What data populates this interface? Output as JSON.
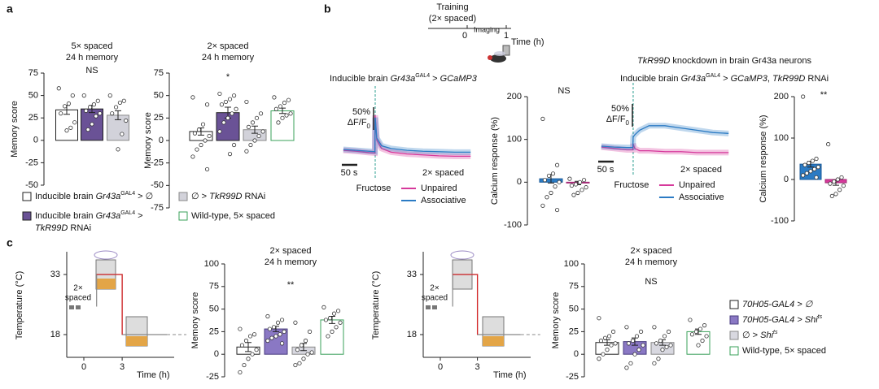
{
  "panel_labels": [
    "a",
    "b",
    "c"
  ],
  "timeline": {
    "lines": [
      "Training",
      "(2× spaced)"
    ],
    "ticks": [
      "0",
      "1"
    ],
    "label": "Imaging",
    "axis_label": "Time (h)"
  },
  "chart_data": [
    {
      "type": "bar",
      "title": [
        "5× spaced",
        "24 h memory"
      ],
      "annotation": "NS",
      "y_label": "Memory score",
      "ylim": [
        -50,
        75
      ],
      "yticks": [
        -50,
        -25,
        0,
        25,
        50,
        75
      ],
      "values": [
        34,
        35,
        28
      ],
      "errors": [
        5,
        4,
        5
      ],
      "points": [
        [
          58,
          50,
          41,
          38,
          30,
          20,
          14,
          11
        ],
        [
          50,
          44,
          40,
          37,
          33,
          30,
          27,
          18,
          12
        ],
        [
          50,
          44,
          42,
          37,
          30,
          22,
          7,
          -10
        ]
      ],
      "colors": [
        "#ffffff",
        "#6a5296",
        "#d2d2da"
      ],
      "edge_colors": [
        "#222222",
        "#222222",
        "#888888"
      ]
    },
    {
      "type": "bar",
      "title": [
        "2× spaced",
        "24 h memory"
      ],
      "annotation": "*",
      "y_label": "Memory score",
      "ylim": [
        -75,
        75
      ],
      "yticks": [
        -75,
        -50,
        -25,
        0,
        25,
        50,
        75
      ],
      "values": [
        10,
        31,
        12,
        33
      ],
      "errors": [
        4,
        6,
        4,
        3
      ],
      "points": [
        [
          48,
          40,
          18,
          12,
          8,
          5,
          0,
          -5,
          -10,
          -18,
          -32
        ],
        [
          52,
          50,
          46,
          43,
          40,
          35,
          30,
          25,
          20,
          10,
          -5,
          -15
        ],
        [
          43,
          30,
          25,
          20,
          15,
          10,
          5,
          0,
          -5,
          -12
        ],
        [
          48,
          45,
          42,
          38,
          35,
          30,
          28,
          25,
          20
        ]
      ],
      "colors": [
        "#ffffff",
        "#6a5296",
        "#d2d2da",
        "#ffffff"
      ],
      "edge_colors": [
        "#222222",
        "#222222",
        "#888888",
        "#3aa05a"
      ]
    },
    {
      "type": "line",
      "title": [
        {
          "t": "Inducible brain "
        },
        {
          "t": "Gr43a",
          "i": true
        },
        {
          "t": "GAL4",
          "sup": true
        },
        {
          "t": " > "
        },
        {
          "t": "GCaMP3",
          "i": true
        }
      ],
      "x": [
        -100,
        -60,
        -20,
        -1,
        0,
        5,
        20,
        50,
        100,
        150,
        200,
        250,
        300
      ],
      "series": [
        {
          "name": "Unpaired",
          "color": "#d6399b",
          "values": [
            -2,
            -4,
            -7,
            -8,
            75,
            20,
            2,
            -6,
            -10,
            -12,
            -14,
            -15,
            -15
          ]
        },
        {
          "name": "Associative",
          "color": "#2b7bc4",
          "values": [
            0,
            -2,
            -4,
            -5,
            70,
            25,
            8,
            2,
            -2,
            -4,
            -5,
            -6,
            -6
          ]
        }
      ],
      "scale_labels": [
        [
          {
            "t": "50%"
          }
        ],
        [
          {
            "t": "ΔF/F"
          },
          {
            "t": "0",
            "sub": true
          }
        ]
      ],
      "time_scale": "50 s",
      "stimulus": "Fructose",
      "condition": "2× spaced"
    },
    {
      "type": "bar",
      "annotation": "NS",
      "y_label": "Calcium response (%)",
      "ylim": [
        -100,
        200
      ],
      "yticks": [
        -100,
        0,
        100,
        200
      ],
      "values": [
        8,
        -2
      ],
      "errors": [
        10,
        4
      ],
      "points": [
        [
          148,
          40,
          20,
          15,
          5,
          0,
          -10,
          -25,
          -35,
          -55,
          -65
        ],
        [
          8,
          5,
          0,
          -5,
          -8,
          -12,
          -18,
          -25,
          -30
        ]
      ],
      "colors": [
        "#2b7bc4",
        "#d6399b"
      ],
      "edge_colors": [
        "#1a5a99",
        "#a32a76"
      ]
    },
    {
      "type": "line",
      "heading": [
        {
          "t": "TkR99D",
          "i": true
        },
        {
          "t": " knockdown in brain Gr43a neurons"
        }
      ],
      "title": [
        {
          "t": "Inducible brain "
        },
        {
          "t": "Gr43a",
          "i": true
        },
        {
          "t": "GAL4",
          "sup": true
        },
        {
          "t": " > "
        },
        {
          "t": "GCaMP3",
          "i": true
        },
        {
          "t": ", "
        },
        {
          "t": "TkR99D",
          "i": true
        },
        {
          "t": " RNAi"
        }
      ],
      "x": [
        -100,
        -60,
        -20,
        -1,
        0,
        5,
        20,
        50,
        100,
        150,
        200,
        250,
        300
      ],
      "series": [
        {
          "name": "Unpaired",
          "color": "#d6399b",
          "values": [
            -2,
            -5,
            -8,
            -8,
            5,
            -5,
            -10,
            -10,
            -12,
            -12,
            -14,
            -14,
            -14
          ]
        },
        {
          "name": "Associative",
          "color": "#2b7bc4",
          "values": [
            0,
            -2,
            -3,
            -3,
            20,
            25,
            35,
            45,
            45,
            40,
            35,
            30,
            28
          ]
        }
      ],
      "scale_labels": [
        [
          {
            "t": "50%"
          }
        ],
        [
          {
            "t": "ΔF/F"
          },
          {
            "t": "0",
            "sub": true
          }
        ]
      ],
      "time_scale": "50 s",
      "stimulus": "Fructose",
      "condition": "2× spaced"
    },
    {
      "type": "bar",
      "annotation": "**",
      "y_label": "Calcium response (%)",
      "ylim": [
        -100,
        200
      ],
      "yticks": [
        -100,
        0,
        100,
        200
      ],
      "values": [
        37,
        -8
      ],
      "errors": [
        7,
        6
      ],
      "points": [
        [
          200,
          50,
          45,
          40,
          35,
          30,
          25,
          20,
          15,
          10,
          5
        ],
        [
          85,
          5,
          0,
          -5,
          -10,
          -15,
          -25,
          -35,
          -40
        ]
      ],
      "colors": [
        "#2b7bc4",
        "#d6399b"
      ],
      "edge_colors": [
        "#1a5a99",
        "#a32a76"
      ]
    },
    {
      "type": "step",
      "y_label": "Temperature (°C)",
      "x_label": "Time (h)",
      "protocol": [
        "2×",
        "spaced"
      ],
      "xticks": [
        0,
        3
      ],
      "yticks": [
        18,
        33
      ],
      "x": [
        1,
        1,
        3,
        3,
        6.5
      ],
      "y": [
        25,
        33,
        33,
        18,
        18
      ]
    },
    {
      "type": "bar",
      "title": [
        "2× spaced",
        "24 h memory"
      ],
      "annotation": "**",
      "y_label": "Memory score",
      "ylim": [
        -25,
        100
      ],
      "yticks": [
        -25,
        0,
        25,
        50,
        75,
        100
      ],
      "values": [
        8,
        28,
        8,
        38
      ],
      "errors": [
        5,
        3,
        4,
        4
      ],
      "points": [
        [
          28,
          22,
          20,
          15,
          10,
          5,
          0,
          -5,
          -12,
          -20
        ],
        [
          42,
          38,
          35,
          30,
          28,
          25,
          22,
          20,
          18,
          15,
          12
        ],
        [
          35,
          25,
          15,
          10,
          5,
          2,
          0,
          -5,
          -10,
          -12
        ],
        [
          52,
          48,
          45,
          40,
          38,
          35,
          30,
          25,
          20
        ]
      ],
      "colors": [
        "#ffffff",
        "#8a78c4",
        "#d8d8e0",
        "#ffffff"
      ],
      "edge_colors": [
        "#222222",
        "#4a3d80",
        "#888888",
        "#3aa05a"
      ]
    },
    {
      "type": "step",
      "y_label": "Temperature (°C)",
      "x_label": "Time (h)",
      "protocol": [
        "2×",
        "spaced"
      ],
      "xticks": [
        0,
        3
      ],
      "yticks": [
        18,
        33
      ],
      "x": [
        1,
        1,
        3,
        3,
        6.5
      ],
      "y": [
        25,
        33,
        33,
        18,
        18
      ]
    },
    {
      "type": "bar",
      "title": [
        "2× spaced",
        "24 h memory"
      ],
      "annotation": "NS",
      "y_label": "Memory score",
      "ylim": [
        -25,
        100
      ],
      "yticks": [
        -25,
        0,
        25,
        50,
        75,
        100
      ],
      "values": [
        13,
        14,
        13,
        25
      ],
      "errors": [
        3,
        4,
        3,
        3
      ],
      "points": [
        [
          40,
          25,
          20,
          18,
          15,
          12,
          10,
          5,
          0,
          -5
        ],
        [
          30,
          25,
          20,
          15,
          12,
          10,
          5,
          0,
          -10,
          -15
        ],
        [
          30,
          25,
          20,
          15,
          12,
          10,
          8,
          5,
          -5,
          -10
        ],
        [
          38,
          32,
          28,
          25,
          22,
          20,
          15,
          10
        ]
      ],
      "colors": [
        "#ffffff",
        "#8a78c4",
        "#d8d8e0",
        "#ffffff"
      ],
      "edge_colors": [
        "#222222",
        "#4a3d80",
        "#888888",
        "#3aa05a"
      ]
    }
  ],
  "legend_a": [
    {
      "color": "#ffffff",
      "edge": "#222222",
      "lines": [
        [
          {
            "t": "Inducible brain "
          },
          {
            "t": "Gr43a",
            "i": true
          },
          {
            "t": "GAL4",
            "sup": true
          },
          {
            "t": " > ∅"
          }
        ]
      ]
    },
    {
      "color": "#6a5296",
      "edge": "#222222",
      "lines": [
        [
          {
            "t": "Inducible brain "
          },
          {
            "t": "Gr43a",
            "i": true
          },
          {
            "t": "GAL4",
            "sup": true
          },
          {
            "t": " >"
          }
        ],
        [
          {
            "t": "TkR99D",
            "i": true
          },
          {
            "t": " RNAi"
          }
        ]
      ]
    },
    {
      "color": "#d2d2da",
      "edge": "#888888",
      "lines": [
        [
          {
            "t": "∅ > "
          },
          {
            "t": "TkR99D",
            "i": true
          },
          {
            "t": " RNAi"
          }
        ]
      ]
    },
    {
      "color": "#ffffff",
      "edge": "#3aa05a",
      "lines": [
        [
          {
            "t": "Wild-type, 5× spaced"
          }
        ]
      ]
    }
  ],
  "legend_c": [
    {
      "color": "#ffffff",
      "edge": "#222222",
      "lines": [
        [
          {
            "t": "70H05-GAL4 > ∅",
            "i": true
          }
        ]
      ]
    },
    {
      "color": "#8a78c4",
      "edge": "#4a3d80",
      "lines": [
        [
          {
            "t": "70H05-GAL4 > Shi",
            "i": true
          },
          {
            "t": "ts",
            "i": true,
            "sup": true
          }
        ]
      ]
    },
    {
      "color": "#d8d8e0",
      "edge": "#888888",
      "lines": [
        [
          {
            "t": "∅ > "
          },
          {
            "t": "Shi",
            "i": true
          },
          {
            "t": "ts",
            "i": true,
            "sup": true
          }
        ]
      ]
    },
    {
      "color": "#ffffff",
      "edge": "#3aa05a",
      "lines": [
        [
          {
            "t": "Wild-type, 5× spaced"
          }
        ]
      ]
    }
  ]
}
